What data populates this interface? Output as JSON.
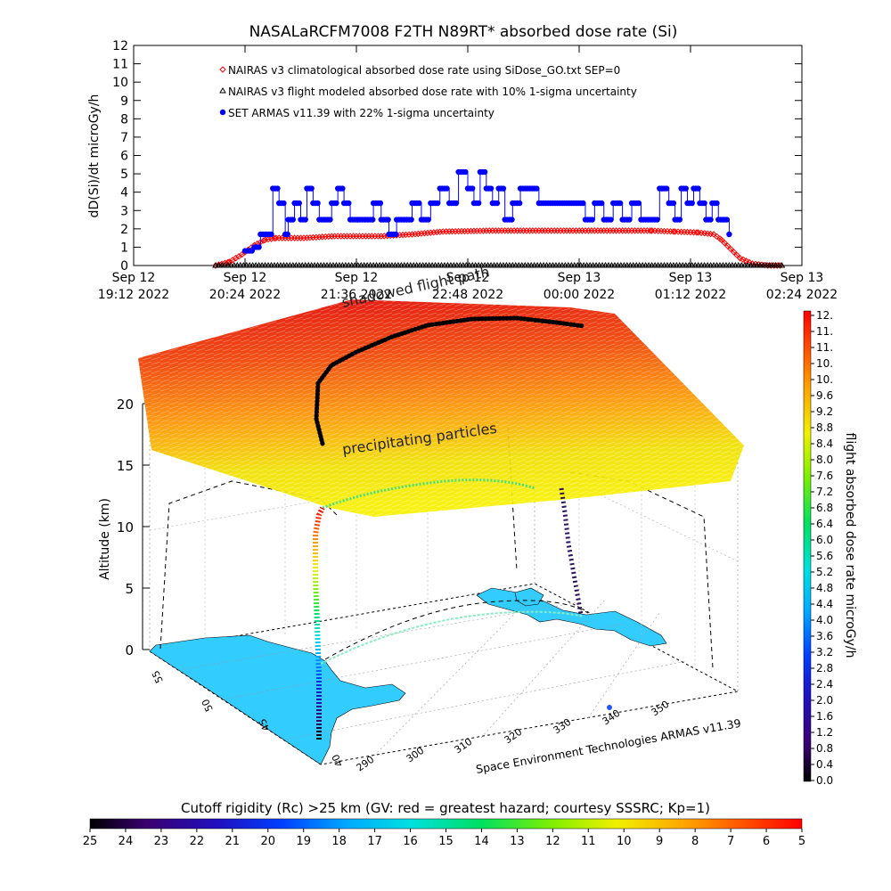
{
  "colors": {
    "armas": "#0000ff",
    "climatological": "#ff0000",
    "flight_modeled": "#000000",
    "flight_track": "#000000",
    "land": "#33ccff"
  },
  "chart_data": [
    {
      "type": "line",
      "title": "NASALaRCFM7008  F2TH N89RT* absorbed dose rate (Si)",
      "ylabel": "dD(Si)/dt microGy/h",
      "xlabel": "",
      "ylim": [
        0,
        12
      ],
      "y_ticks": [
        "0",
        "1",
        "2",
        "3",
        "4",
        "5",
        "6",
        "7",
        "8",
        "9",
        "10",
        "11",
        "12"
      ],
      "x_ticks": [
        {
          "line1": "Sep 12",
          "line2": "19:12 2022"
        },
        {
          "line1": "Sep 12",
          "line2": "20:24 2022"
        },
        {
          "line1": "Sep 12",
          "line2": "21:36 2022"
        },
        {
          "line1": "Sep 12",
          "line2": "22:48 2022"
        },
        {
          "line1": "Sep 13",
          "line2": "00:00 2022"
        },
        {
          "line1": "Sep 13",
          "line2": "01:12 2022"
        },
        {
          "line1": "Sep 13",
          "line2": "02:24 2022"
        }
      ],
      "x_unit": "minutes after Sep 12 19:12 2022",
      "xlim": [
        0,
        432
      ],
      "legend_position": "top-left",
      "series": [
        {
          "name": "NAIRAS v3 climatological absorbed dose rate using SiDose_GO.txt SEP=0",
          "marker": "diamond",
          "x": [
            53,
            62,
            70,
            78,
            85,
            92,
            100,
            110,
            130,
            160,
            180,
            200,
            230,
            260,
            290,
            320,
            335,
            350,
            365,
            375,
            380,
            386,
            392,
            400,
            410,
            420
          ],
          "values": [
            0,
            0.2,
            0.6,
            1.1,
            1.4,
            1.5,
            1.5,
            1.5,
            1.6,
            1.6,
            1.7,
            1.85,
            1.9,
            1.9,
            1.9,
            1.9,
            1.9,
            1.85,
            1.8,
            1.7,
            1.4,
            0.9,
            0.4,
            0.1,
            0,
            0
          ]
        },
        {
          "name": "NAIRAS v3 flight modeled absorbed dose rate with 10% 1-sigma uncertainty",
          "marker": "triangle",
          "x": [
            53,
            120,
            190,
            260,
            330,
            420
          ],
          "values": [
            0,
            0,
            0,
            0,
            0,
            0
          ]
        },
        {
          "name": "SET ARMAS v11.39 with 22% 1-sigma uncertainty",
          "marker": "circle",
          "x": [
            72,
            78,
            82,
            86,
            90,
            94,
            98,
            100,
            104,
            108,
            112,
            116,
            120,
            124,
            128,
            132,
            136,
            140,
            145,
            150,
            155,
            160,
            165,
            170,
            175,
            180,
            186,
            192,
            198,
            204,
            210,
            216,
            220,
            224,
            228,
            232,
            236,
            240,
            245,
            250,
            256,
            262,
            268,
            274,
            280,
            286,
            292,
            298,
            304,
            310,
            316,
            322,
            328,
            334,
            340,
            346,
            350,
            354,
            358,
            362,
            366,
            370,
            374,
            378,
            382,
            385
          ],
          "values": [
            0.8,
            1.0,
            1.7,
            1.7,
            4.2,
            3.4,
            1.7,
            2.5,
            3.4,
            2.5,
            4.2,
            3.4,
            2.5,
            2.5,
            3.4,
            4.2,
            3.4,
            2.5,
            2.5,
            2.5,
            3.4,
            2.5,
            1.7,
            2.5,
            2.5,
            3.4,
            2.5,
            3.4,
            4.2,
            3.4,
            5.1,
            4.2,
            3.4,
            5.1,
            4.2,
            3.4,
            4.2,
            2.5,
            3.4,
            4.2,
            4.2,
            3.4,
            3.4,
            3.4,
            3.4,
            3.4,
            2.5,
            3.4,
            2.5,
            3.4,
            2.5,
            3.4,
            2.5,
            2.5,
            4.2,
            3.4,
            2.5,
            4.2,
            3.4,
            4.2,
            3.4,
            2.5,
            3.4,
            2.5,
            2.5,
            1.7
          ]
        }
      ]
    },
    {
      "type": "scatter",
      "subtype": "3d-flight-track",
      "zlabel": "Altitude (km)",
      "zlim": [
        0,
        20
      ],
      "z_ticks": [
        "0",
        "5",
        "10",
        "15",
        "20"
      ],
      "lat_ticks": [
        "40",
        "45",
        "50",
        "55"
      ],
      "lon_ticks": [
        "290",
        "300",
        "310",
        "320",
        "330",
        "340",
        "350"
      ],
      "annotations": [
        "precipitating particles",
        "shadowed flight path"
      ],
      "footer": "Space Environment Technologies ARMAS v11.39",
      "colorbar_right": {
        "label": "flight absorbed dose rate microGy/h",
        "ticks": [
          "0.0",
          "0.4",
          "0.8",
          "1.2",
          "1.6",
          "2.0",
          "2.4",
          "2.8",
          "3.2",
          "3.6",
          "4.0",
          "4.4",
          "4.8",
          "5.2",
          "5.6",
          "6.0",
          "6.4",
          "6.8",
          "7.2",
          "7.6",
          "8.0",
          "8.4",
          "8.8",
          "9.2",
          "9.6",
          "10.",
          "10.",
          "11.",
          "11.",
          "12."
        ]
      },
      "colorbar_bottom": {
        "label": "Cutoff rigidity (Rc) >25 km (GV: red = greatest hazard; courtesy SSSRC; Kp=1)",
        "ticks": [
          "25",
          "24",
          "23",
          "22",
          "21",
          "20",
          "19",
          "18",
          "17",
          "16",
          "15",
          "14",
          "13",
          "12",
          "11",
          "10",
          "9",
          "8",
          "7",
          "6",
          "5"
        ]
      }
    }
  ]
}
